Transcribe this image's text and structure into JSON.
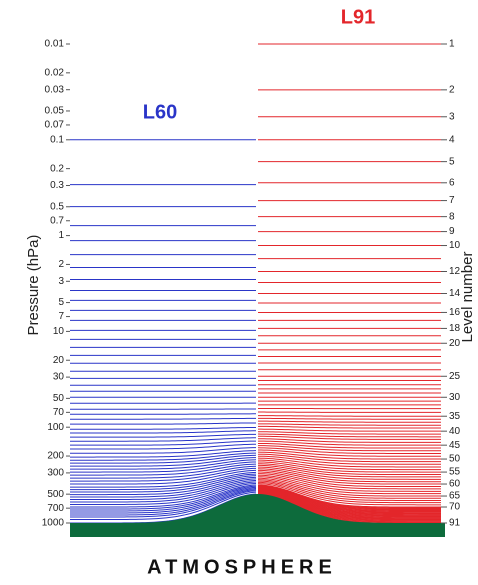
{
  "chart_data": {
    "type": "levels",
    "y_label": "Pressure (hPa)",
    "y2_label": "Level number",
    "yscale": "log",
    "ylim": [
      0.01,
      1000
    ],
    "yticks": [
      0.01,
      0.02,
      0.03,
      0.05,
      0.07,
      0.1,
      0.2,
      0.3,
      0.5,
      0.7,
      1,
      2,
      3,
      5,
      7,
      10,
      20,
      30,
      50,
      70,
      100,
      200,
      300,
      500,
      700,
      1000
    ],
    "y2ticks": [
      1,
      2,
      3,
      4,
      5,
      6,
      7,
      8,
      9,
      10,
      12,
      14,
      16,
      18,
      20,
      25,
      30,
      35,
      40,
      45,
      50,
      55,
      60,
      65,
      70,
      91
    ],
    "series": [
      {
        "name": "L60",
        "color": "#2a35c8",
        "values": [
          0.1,
          0.294,
          0.499,
          0.787,
          1.13,
          1.58,
          2.15,
          2.87,
          3.74,
          4.75,
          6.04,
          7.68,
          9.77,
          12.1,
          14.7,
          17.8,
          21.5,
          26.1,
          30.9,
          36.5,
          42.2,
          48.7,
          56.2,
          64.9,
          73.3,
          82.5,
          93,
          105,
          115,
          127,
          140,
          154,
          169,
          187,
          205,
          221,
          237,
          255,
          274,
          294,
          316,
          340,
          365,
          392,
          422,
          448,
          475,
          505,
          536,
          569,
          604,
          641,
          681,
          715,
          750,
          787,
          826,
          866,
          920,
          1000
        ]
      },
      {
        "name": "L91",
        "color": "#e3262b",
        "values": [
          0.01,
          0.0301,
          0.0575,
          0.1,
          0.169,
          0.281,
          0.431,
          0.634,
          0.908,
          1.27,
          1.74,
          2.37,
          3.09,
          4.02,
          5.05,
          6.34,
          7.68,
          9.31,
          11.1,
          13.3,
          15.6,
          18.3,
          21.4,
          25.1,
          29.4,
          32.5,
          36,
          39.8,
          44,
          48.7,
          53.4,
          58.5,
          64,
          70.1,
          76.8,
          82.5,
          88.7,
          95.3,
          102,
          110,
          118,
          126,
          134,
          144,
          154,
          165,
          176,
          188,
          201,
          215,
          229,
          244,
          260,
          277,
          294,
          312,
          330,
          350,
          371,
          392,
          416,
          440,
          467,
          494,
          523,
          552,
          582,
          613,
          646,
          681,
          694,
          706,
          719,
          732,
          746,
          759,
          773,
          788,
          802,
          817,
          832,
          847,
          863,
          879,
          895,
          911,
          928,
          945,
          963,
          981,
          1000
        ]
      }
    ]
  },
  "footer": "ATMOSPHERE"
}
